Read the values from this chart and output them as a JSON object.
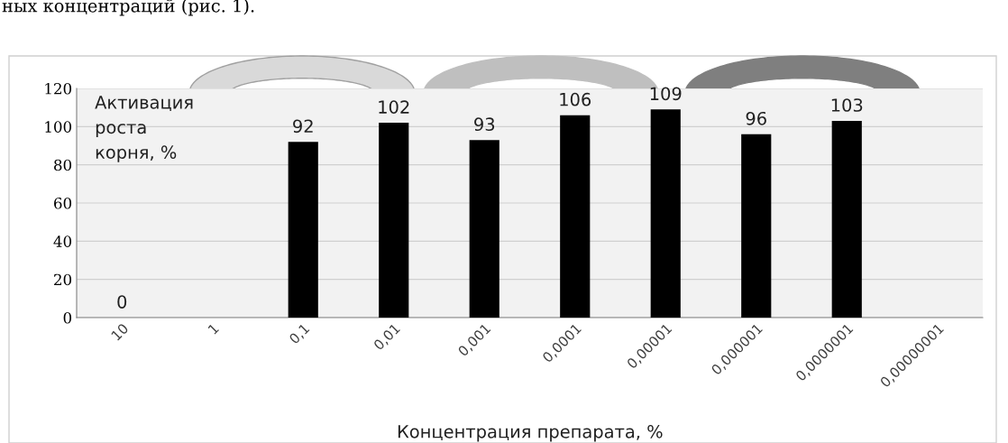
{
  "chart_data": {
    "type": "bar",
    "categories": [
      "10",
      "1",
      "0,1",
      "0,01",
      "0,001",
      "0,0001",
      "0,00001",
      "0,000001",
      "0,0000001",
      "0,00000001"
    ],
    "values": [
      0,
      null,
      92,
      102,
      93,
      106,
      109,
      96,
      103,
      null
    ],
    "value_labels": [
      "0",
      null,
      "92",
      "102",
      "93",
      "106",
      "109",
      "96",
      "103",
      null
    ],
    "color": "#000000",
    "ylabel": "Активация роста корня, %",
    "xlabel": "Концентрация препарата, %",
    "ylim": [
      0,
      120
    ],
    "yticks": [
      0,
      20,
      40,
      60,
      80,
      100,
      120
    ],
    "grid": "y",
    "annotations": [
      "ных концентраций (рис. 1)."
    ]
  }
}
